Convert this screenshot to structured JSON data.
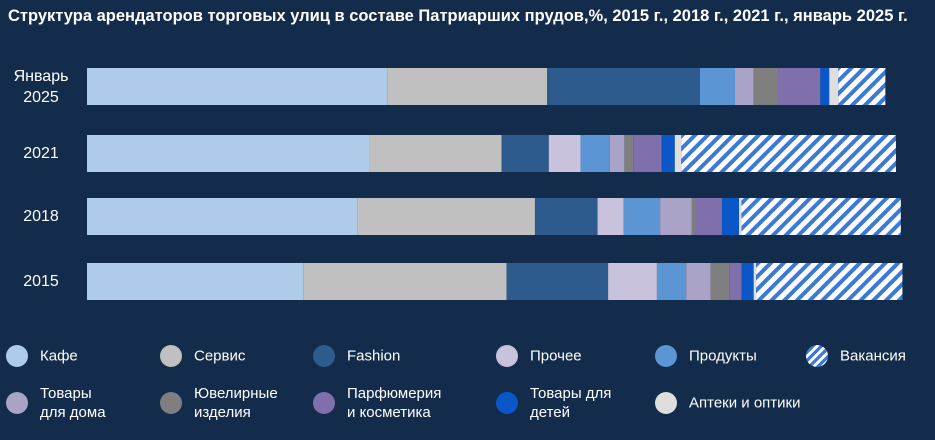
{
  "chart_data": {
    "type": "bar",
    "orientation": "horizontal",
    "stacked": true,
    "unit": "%",
    "title": "Структура арендаторов торговых улиц в составе Патриарших прудов,%, 2015 г., 2018 г., 2021 г., январь 2025 г.",
    "categories": [
      "Январь\n2025",
      "2021",
      "2018",
      "2015"
    ],
    "xlim": [
      0,
      100
    ],
    "series": [
      {
        "name": "Кафе",
        "color": "#aecbea",
        "values": [
          37.0,
          34.8,
          33.3,
          26.6
        ]
      },
      {
        "name": "Сервис",
        "color": "#c0c0c0",
        "values": [
          19.6,
          16.2,
          21.8,
          25.0
        ]
      },
      {
        "name": "Fashion",
        "color": "#2e5b8e",
        "values": [
          18.8,
          5.8,
          7.7,
          12.5
        ]
      },
      {
        "name": "Прочее",
        "color": "#c9c2dc",
        "values": [
          0,
          3.9,
          3.2,
          6.0
        ]
      },
      {
        "name": "Продукты",
        "color": "#5b95d4",
        "values": [
          4.3,
          3.6,
          4.5,
          3.6
        ]
      },
      {
        "name": "Товары для дома",
        "color": "#a9a3c8",
        "values": [
          2.3,
          1.8,
          3.9,
          3.0
        ]
      },
      {
        "name": "Ювелирные изделия",
        "color": "#7f7f7f",
        "values": [
          3.0,
          1.1,
          0.5,
          2.3
        ]
      },
      {
        "name": "Парфюмерия и косметика",
        "color": "#7f70ab",
        "values": [
          5.2,
          3.5,
          3.2,
          1.5
        ]
      },
      {
        "name": "Товары для детей",
        "color": "#0b57c7",
        "values": [
          1.1,
          1.6,
          2.1,
          1.5
        ]
      },
      {
        "name": "Аптеки и оптики",
        "color": "#dedede",
        "values": [
          1.1,
          0.8,
          0.3,
          0.3
        ]
      },
      {
        "name": "Вакансия",
        "color": "hatch",
        "values": [
          5.8,
          26.4,
          19.6,
          18.0
        ]
      }
    ],
    "legend": "bottom"
  },
  "legend_order": [
    "Кафе",
    "Сервис",
    "Fashion",
    "Прочее",
    "Продукты",
    "Вакансия",
    "Товары\nдля дома",
    "Ювелирные\nизделия",
    "Парфюмерия\nи косметика",
    "Товары для\nдетей",
    "Аптеки и оптики"
  ]
}
